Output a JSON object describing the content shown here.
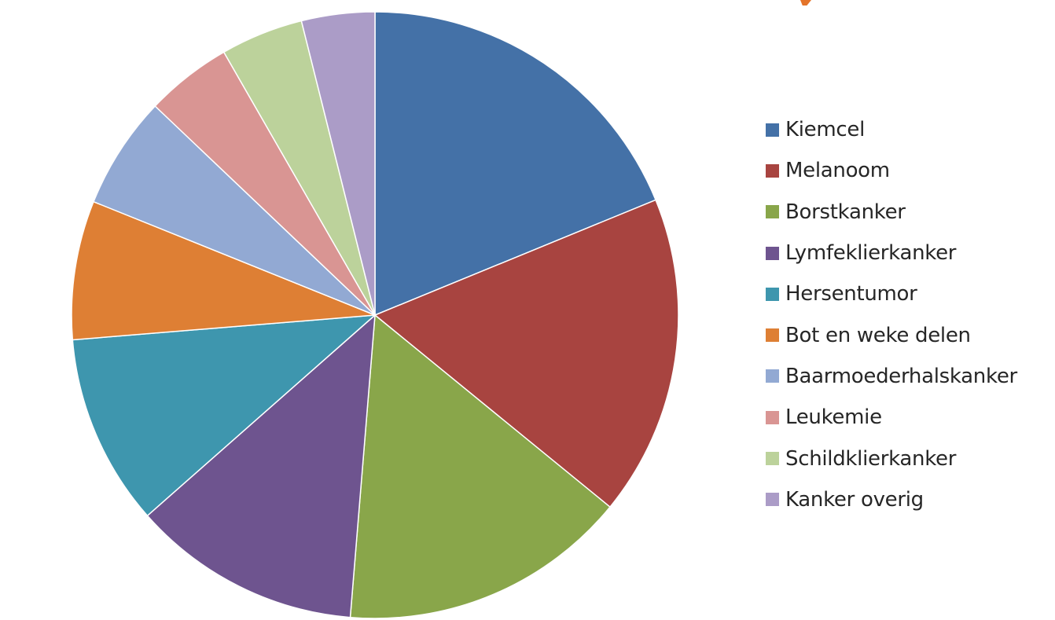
{
  "chart_data": {
    "type": "pie",
    "title": "",
    "legend_position": "right",
    "start_angle_deg": 0,
    "direction": "clockwise",
    "series": [
      {
        "label": "Kiemcel",
        "value": 18.8,
        "color": "#4471A7"
      },
      {
        "label": "Melanoom",
        "value": 17.1,
        "color": "#A84440"
      },
      {
        "label": "Borstkanker",
        "value": 15.4,
        "color": "#89A64A"
      },
      {
        "label": "Lymfeklierkanker",
        "value": 12.2,
        "color": "#6E548F"
      },
      {
        "label": "Hersentumor",
        "value": 10.2,
        "color": "#3E96AE"
      },
      {
        "label": "Bot en weke delen",
        "value": 7.4,
        "color": "#DE7F34"
      },
      {
        "label": "Baarmoederhalskanker",
        "value": 6.0,
        "color": "#92A9D3"
      },
      {
        "label": "Leukemie",
        "value": 4.6,
        "color": "#D99593"
      },
      {
        "label": "Schildklierkanker",
        "value": 4.4,
        "color": "#BCD29B"
      },
      {
        "label": "Kanker overig",
        "value": 3.9,
        "color": "#AB9CC7"
      }
    ]
  }
}
